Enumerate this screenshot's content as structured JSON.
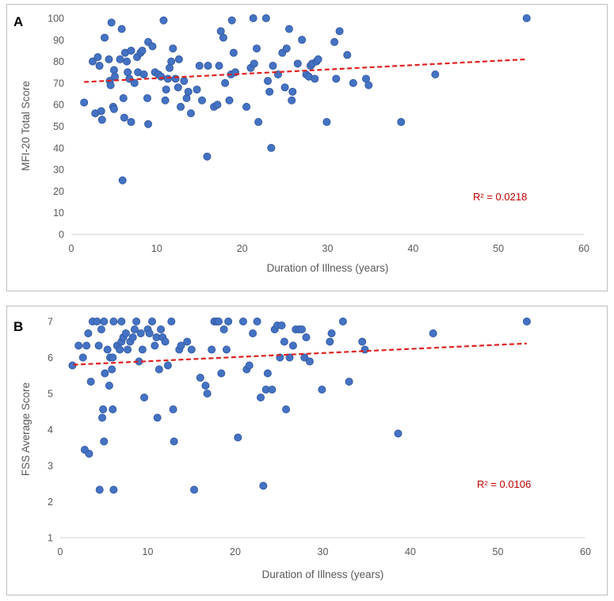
{
  "chart_data": [
    {
      "panel": "A",
      "type": "scatter",
      "xlabel": "Duration of Illness (years)",
      "ylabel": "MFI-20 Total Score",
      "xlim": [
        0,
        60
      ],
      "ylim": [
        0,
        100
      ],
      "xticks": [
        0,
        10,
        20,
        30,
        40,
        50,
        60
      ],
      "yticks": [
        0,
        10,
        20,
        30,
        40,
        50,
        60,
        70,
        80,
        90,
        100
      ],
      "grid": false,
      "annotation": "R² = 0.0218",
      "trendline": {
        "style": "dashed",
        "color": "#e02020",
        "start": [
          1.5,
          70.5
        ],
        "end": [
          53.3,
          81
        ]
      },
      "points": [
        [
          1.5,
          61
        ],
        [
          2.5,
          80
        ],
        [
          2.8,
          56
        ],
        [
          3.1,
          82
        ],
        [
          3.3,
          78
        ],
        [
          3.5,
          57
        ],
        [
          3.6,
          53
        ],
        [
          3.9,
          91
        ],
        [
          4.4,
          81
        ],
        [
          4.5,
          71
        ],
        [
          4.6,
          69
        ],
        [
          4.7,
          98
        ],
        [
          4.9,
          59
        ],
        [
          5.0,
          76
        ],
        [
          5.0,
          58
        ],
        [
          5.1,
          73
        ],
        [
          5.7,
          81
        ],
        [
          5.9,
          95
        ],
        [
          6.1,
          63
        ],
        [
          6.2,
          54
        ],
        [
          6.3,
          84
        ],
        [
          6.5,
          80
        ],
        [
          6.6,
          75
        ],
        [
          6.8,
          72
        ],
        [
          7.0,
          85
        ],
        [
          7.0,
          52
        ],
        [
          7.4,
          70
        ],
        [
          7.7,
          82
        ],
        [
          7.8,
          75
        ],
        [
          8.1,
          84
        ],
        [
          8.3,
          85
        ],
        [
          8.5,
          74
        ],
        [
          8.9,
          63
        ],
        [
          9.0,
          51
        ],
        [
          9.0,
          89
        ],
        [
          9.5,
          87
        ],
        [
          9.8,
          75
        ],
        [
          10.2,
          74
        ],
        [
          10.5,
          73
        ],
        [
          10.8,
          99
        ],
        [
          11.0,
          62
        ],
        [
          11.1,
          67
        ],
        [
          11.3,
          72
        ],
        [
          11.5,
          77
        ],
        [
          11.7,
          80
        ],
        [
          11.9,
          86
        ],
        [
          12.2,
          72
        ],
        [
          12.5,
          68
        ],
        [
          12.6,
          81
        ],
        [
          12.8,
          59
        ],
        [
          13.2,
          71
        ],
        [
          13.5,
          63
        ],
        [
          13.7,
          66
        ],
        [
          14.0,
          56
        ],
        [
          14.7,
          67
        ],
        [
          15.0,
          78
        ],
        [
          15.3,
          62
        ],
        [
          15.9,
          36
        ],
        [
          16.0,
          78
        ],
        [
          16.7,
          59
        ],
        [
          17.1,
          60
        ],
        [
          17.3,
          78
        ],
        [
          17.5,
          94
        ],
        [
          17.8,
          91
        ],
        [
          18.0,
          70
        ],
        [
          18.5,
          62
        ],
        [
          18.7,
          74
        ],
        [
          18.8,
          99
        ],
        [
          19.0,
          84
        ],
        [
          19.2,
          75
        ],
        [
          20.5,
          59
        ],
        [
          21.0,
          77
        ],
        [
          21.3,
          100
        ],
        [
          21.4,
          79
        ],
        [
          21.7,
          86
        ],
        [
          21.9,
          52
        ],
        [
          22.8,
          100
        ],
        [
          23.0,
          71
        ],
        [
          23.2,
          66
        ],
        [
          23.4,
          40
        ],
        [
          23.6,
          78
        ],
        [
          24.2,
          74
        ],
        [
          24.7,
          84
        ],
        [
          25.0,
          68
        ],
        [
          25.2,
          86
        ],
        [
          25.5,
          95
        ],
        [
          25.8,
          62
        ],
        [
          25.9,
          66
        ],
        [
          26.5,
          79
        ],
        [
          27.0,
          90
        ],
        [
          27.5,
          74
        ],
        [
          27.8,
          73
        ],
        [
          28.0,
          78
        ],
        [
          28.2,
          79
        ],
        [
          28.5,
          72
        ],
        [
          28.7,
          80
        ],
        [
          28.9,
          81
        ],
        [
          29.9,
          52
        ],
        [
          30.8,
          89
        ],
        [
          31.0,
          72
        ],
        [
          31.4,
          94
        ],
        [
          32.3,
          83
        ],
        [
          33.0,
          70
        ],
        [
          34.5,
          72
        ],
        [
          34.8,
          69
        ],
        [
          38.6,
          52
        ],
        [
          42.6,
          74
        ],
        [
          53.3,
          100
        ],
        [
          6.0,
          25
        ]
      ]
    },
    {
      "panel": "B",
      "type": "scatter",
      "xlabel": "Duration of Illness (years)",
      "ylabel": "FSS Average  Score",
      "xlim": [
        0,
        60
      ],
      "ylim": [
        1,
        7
      ],
      "xticks": [
        0,
        10,
        20,
        30,
        40,
        50,
        60
      ],
      "yticks": [
        1,
        2,
        3,
        4,
        5,
        6,
        7
      ],
      "grid": false,
      "annotation": "R² = 0.0106",
      "trendline": {
        "style": "dashed",
        "color": "#e02020",
        "start": [
          1.5,
          5.8
        ],
        "end": [
          53.3,
          6.39
        ]
      },
      "points": [
        [
          1.4,
          5.78
        ],
        [
          2.1,
          6.33
        ],
        [
          2.6,
          6.0
        ],
        [
          2.8,
          3.44
        ],
        [
          3.0,
          6.33
        ],
        [
          3.2,
          6.67
        ],
        [
          3.3,
          3.33
        ],
        [
          3.5,
          5.33
        ],
        [
          3.7,
          7.0
        ],
        [
          4.2,
          7.0
        ],
        [
          4.4,
          6.33
        ],
        [
          4.5,
          2.33
        ],
        [
          4.7,
          6.78
        ],
        [
          4.8,
          4.33
        ],
        [
          4.9,
          4.56
        ],
        [
          5.0,
          3.67
        ],
        [
          5.0,
          7.0
        ],
        [
          5.1,
          5.56
        ],
        [
          5.4,
          6.22
        ],
        [
          5.6,
          5.22
        ],
        [
          5.7,
          6.0
        ],
        [
          5.9,
          5.67
        ],
        [
          6.0,
          4.56
        ],
        [
          6.0,
          6.0
        ],
        [
          6.1,
          2.33
        ],
        [
          6.1,
          7.0
        ],
        [
          6.5,
          6.33
        ],
        [
          6.8,
          6.22
        ],
        [
          7.0,
          6.44
        ],
        [
          7.0,
          7.0
        ],
        [
          7.2,
          6.56
        ],
        [
          7.5,
          6.67
        ],
        [
          7.7,
          6.22
        ],
        [
          8.0,
          6.44
        ],
        [
          8.3,
          6.56
        ],
        [
          8.5,
          6.78
        ],
        [
          8.7,
          7.0
        ],
        [
          9.0,
          5.89
        ],
        [
          9.2,
          6.67
        ],
        [
          9.4,
          6.22
        ],
        [
          9.6,
          4.89
        ],
        [
          10.0,
          6.78
        ],
        [
          10.2,
          6.67
        ],
        [
          10.5,
          7.0
        ],
        [
          10.8,
          6.33
        ],
        [
          11.0,
          6.56
        ],
        [
          11.1,
          4.33
        ],
        [
          11.3,
          5.67
        ],
        [
          11.5,
          6.78
        ],
        [
          11.7,
          6.56
        ],
        [
          12.0,
          6.44
        ],
        [
          12.3,
          5.78
        ],
        [
          12.7,
          7.0
        ],
        [
          12.9,
          4.56
        ],
        [
          13.0,
          3.67
        ],
        [
          13.6,
          6.22
        ],
        [
          13.8,
          6.33
        ],
        [
          14.5,
          6.44
        ],
        [
          15.0,
          6.22
        ],
        [
          15.3,
          2.33
        ],
        [
          16.0,
          5.44
        ],
        [
          16.6,
          5.22
        ],
        [
          16.8,
          5.0
        ],
        [
          17.3,
          6.22
        ],
        [
          17.6,
          7.0
        ],
        [
          17.9,
          7.0
        ],
        [
          18.1,
          7.0
        ],
        [
          18.4,
          5.56
        ],
        [
          18.7,
          6.78
        ],
        [
          19.0,
          6.22
        ],
        [
          19.2,
          7.0
        ],
        [
          20.3,
          3.78
        ],
        [
          20.9,
          7.0
        ],
        [
          21.3,
          5.67
        ],
        [
          21.6,
          5.78
        ],
        [
          22.0,
          6.67
        ],
        [
          22.5,
          7.0
        ],
        [
          22.9,
          4.89
        ],
        [
          23.2,
          2.44
        ],
        [
          23.5,
          5.11
        ],
        [
          23.7,
          5.56
        ],
        [
          24.2,
          5.11
        ],
        [
          24.5,
          6.78
        ],
        [
          24.8,
          6.89
        ],
        [
          25.1,
          6.0
        ],
        [
          25.3,
          6.89
        ],
        [
          25.6,
          6.44
        ],
        [
          25.8,
          4.56
        ],
        [
          26.2,
          6.0
        ],
        [
          26.6,
          6.33
        ],
        [
          26.9,
          6.78
        ],
        [
          27.3,
          6.78
        ],
        [
          27.6,
          6.78
        ],
        [
          27.9,
          6.0
        ],
        [
          28.1,
          6.56
        ],
        [
          28.5,
          5.89
        ],
        [
          29.9,
          5.11
        ],
        [
          30.8,
          6.44
        ],
        [
          31.0,
          6.67
        ],
        [
          32.3,
          7.0
        ],
        [
          33.0,
          5.33
        ],
        [
          34.5,
          6.44
        ],
        [
          34.8,
          6.22
        ],
        [
          38.6,
          3.89
        ],
        [
          42.6,
          6.67
        ],
        [
          53.3,
          7.0
        ]
      ]
    }
  ]
}
